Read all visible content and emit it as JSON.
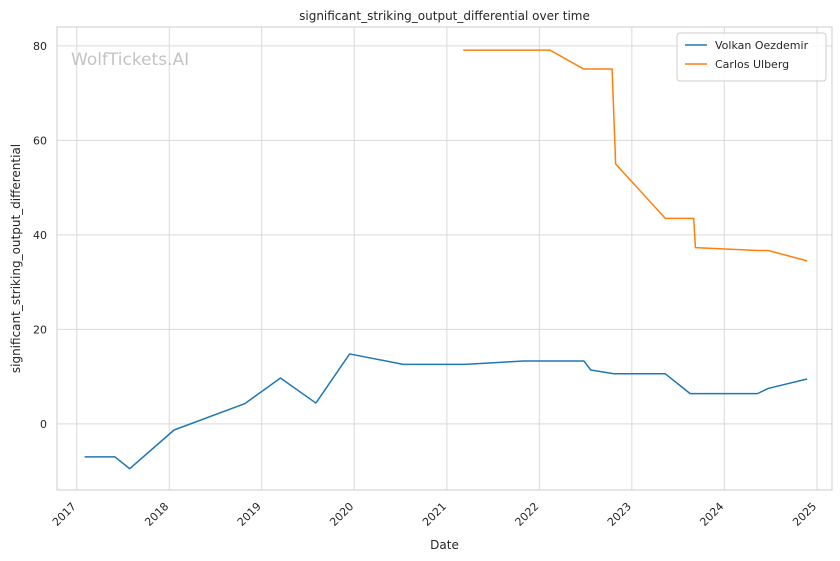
{
  "chart_data": {
    "type": "line",
    "title": "significant_striking_output_differential over time",
    "xlabel": "Date",
    "ylabel": "significant_striking_output_differential",
    "watermark": "WolfTickets.AI",
    "x_ticks": [
      "2017",
      "2018",
      "2019",
      "2020",
      "2021",
      "2022",
      "2023",
      "2024",
      "2025"
    ],
    "y_ticks": [
      0,
      20,
      40,
      60,
      80
    ],
    "xlim": [
      "2016-10-15",
      "2025-03-01"
    ],
    "ylim": [
      -14,
      84
    ],
    "grid": true,
    "legend_position": "top-right",
    "series": [
      {
        "name": "Volkan Oezdemir",
        "color": "#1f77b4",
        "points": [
          [
            "2017-02-01",
            -7.0
          ],
          [
            "2017-06-01",
            -7.0
          ],
          [
            "2017-07-29",
            -9.5
          ],
          [
            "2018-01-20",
            -1.3
          ],
          [
            "2018-10-27",
            4.3
          ],
          [
            "2019-03-16",
            9.7
          ],
          [
            "2019-08-03",
            4.4
          ],
          [
            "2019-12-14",
            14.8
          ],
          [
            "2020-07-12",
            12.6
          ],
          [
            "2021-03-13",
            12.6
          ],
          [
            "2021-11-01",
            13.3
          ],
          [
            "2022-06-26",
            13.3
          ],
          [
            "2022-07-23",
            11.4
          ],
          [
            "2022-10-22",
            10.6
          ],
          [
            "2023-05-13",
            10.6
          ],
          [
            "2023-08-19",
            6.4
          ],
          [
            "2024-05-11",
            6.4
          ],
          [
            "2024-06-22",
            7.5
          ],
          [
            "2024-11-23",
            9.5
          ]
        ]
      },
      {
        "name": "Carlos Ulberg",
        "color": "#ff7f0e",
        "points": [
          [
            "2021-03-06",
            79.1
          ],
          [
            "2022-02-12",
            79.1
          ],
          [
            "2022-06-25",
            75.1
          ],
          [
            "2022-10-15",
            75.1
          ],
          [
            "2022-10-29",
            55.0
          ],
          [
            "2023-05-13",
            43.5
          ],
          [
            "2023-09-02",
            43.5
          ],
          [
            "2023-09-09",
            37.3
          ],
          [
            "2024-05-11",
            36.7
          ],
          [
            "2024-06-22",
            36.7
          ],
          [
            "2024-11-23",
            34.5
          ]
        ]
      }
    ]
  }
}
